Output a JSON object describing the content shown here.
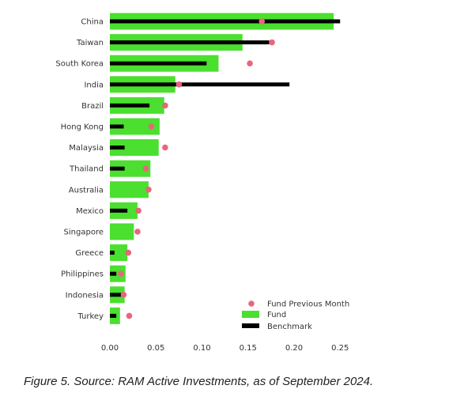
{
  "chart_data": {
    "type": "bar",
    "categories": [
      "China",
      "Taiwan",
      "South Korea",
      "India",
      "Brazil",
      "Hong Kong",
      "Malaysia",
      "Thailand",
      "Australia",
      "Mexico",
      "Singapore",
      "Greece",
      "Philippines",
      "Indonesia",
      "Turkey"
    ],
    "series": [
      {
        "name": "Fund",
        "kind": "bar",
        "color": "#4bdf2f",
        "values": [
          0.243,
          0.144,
          0.118,
          0.071,
          0.059,
          0.054,
          0.053,
          0.044,
          0.042,
          0.03,
          0.026,
          0.019,
          0.017,
          0.016,
          0.011
        ]
      },
      {
        "name": "Benchmark",
        "kind": "thin-bar",
        "color": "#000000",
        "values": [
          0.25,
          0.173,
          0.105,
          0.195,
          0.043,
          0.015,
          0.016,
          0.016,
          0.0,
          0.019,
          0.0,
          0.005,
          0.007,
          0.012,
          0.007
        ]
      },
      {
        "name": "Fund Previous Month",
        "kind": "dot",
        "color": "#e8667c",
        "values": [
          0.165,
          0.176,
          0.152,
          0.075,
          0.06,
          0.045,
          0.06,
          0.039,
          0.042,
          0.031,
          0.03,
          0.02,
          0.012,
          0.015,
          0.021
        ]
      }
    ],
    "x_ticks": [
      "0.00",
      "0.05",
      "0.10",
      "0.15",
      "0.20",
      "0.25"
    ],
    "xlim": [
      0,
      0.25
    ],
    "legend_position": "bottom-right",
    "legend": [
      "Fund Previous Month",
      "Fund",
      "Benchmark"
    ],
    "grid": false,
    "orientation": "horizontal"
  },
  "caption": "Figure 5. Source: RAM Active Investments, as of September 2024."
}
